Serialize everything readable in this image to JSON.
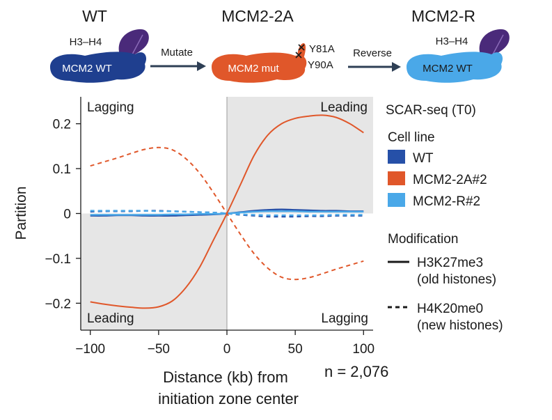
{
  "colors": {
    "wt": "#2650a8",
    "wt_dark": "#1f3f8f",
    "mutant": "#e0572a",
    "revert": "#4aa8e8",
    "histone": "#4a2a7a",
    "arrow": "#2e3f55",
    "shade": "#e6e6e6",
    "zero_line": "#9a9a9a",
    "text": "#1a1a1a"
  },
  "schematic": {
    "wt": {
      "title": "WT",
      "protein_label": "MCM2 WT",
      "histone_label": "H3–H4"
    },
    "step1": {
      "label": "Mutate"
    },
    "mutant": {
      "title": "MCM2-2A",
      "protein_label": "MCM2 mut",
      "mutation_1": "Y81A",
      "mutation_2": "Y90A"
    },
    "step2": {
      "label": "Reverse"
    },
    "revert": {
      "title": "MCM2-R",
      "protein_label": "MCM2 WT",
      "histone_label": "H3–H4"
    }
  },
  "chart_data": {
    "type": "line",
    "xlabel_line1": "Distance (kb) from",
    "xlabel_line2": "initiation zone center",
    "ylabel": "Partition",
    "xlim": [
      -107,
      107
    ],
    "ylim": [
      -0.26,
      0.26
    ],
    "x_ticks": [
      {
        "value": -100,
        "label": "−100"
      },
      {
        "value": -50,
        "label": "−50"
      },
      {
        "value": 0,
        "label": "0"
      },
      {
        "value": 50,
        "label": "50"
      },
      {
        "value": 100,
        "label": "100"
      }
    ],
    "y_ticks": [
      {
        "value": 0.2,
        "label": "0.2"
      },
      {
        "value": 0.1,
        "label": "0.1"
      },
      {
        "value": 0,
        "label": "0"
      },
      {
        "value": -0.1,
        "label": "−0.1"
      },
      {
        "value": -0.2,
        "label": "−0.2"
      }
    ],
    "quadrant_labels": {
      "top_left": "Lagging",
      "top_right": "Leading",
      "bottom_left": "Leading",
      "bottom_right": "Lagging"
    },
    "n_label": "n = 2,076",
    "legend": {
      "title": "SCAR-seq (T0)",
      "cell_line_header": "Cell line",
      "cell_lines": [
        {
          "name": "WT",
          "color": "#2650a8"
        },
        {
          "name": "MCM2-2A#2",
          "color": "#e0572a"
        },
        {
          "name": "MCM2-R#2",
          "color": "#4aa8e8"
        }
      ],
      "modification_header": "Modification",
      "modifications": [
        {
          "name": "H3K27me3",
          "note": "(old histones)",
          "dash": "solid"
        },
        {
          "name": "H4K20me0",
          "note": "(new histones)",
          "dash": "dashed"
        }
      ]
    },
    "x": [
      -100,
      -90,
      -80,
      -70,
      -60,
      -50,
      -40,
      -30,
      -20,
      -10,
      0,
      10,
      20,
      30,
      40,
      50,
      60,
      70,
      80,
      90,
      100
    ],
    "series": [
      {
        "name": "MCM2-2A#2 H3K27me3",
        "cell_line": "MCM2-2A#2",
        "modification": "H3K27me3",
        "color": "#e0572a",
        "dash": "solid",
        "values": [
          -0.197,
          -0.202,
          -0.206,
          -0.209,
          -0.211,
          -0.208,
          -0.195,
          -0.165,
          -0.12,
          -0.06,
          0.0,
          0.065,
          0.13,
          0.175,
          0.2,
          0.212,
          0.217,
          0.219,
          0.214,
          0.2,
          0.18
        ]
      },
      {
        "name": "MCM2-2A#2 H4K20me0",
        "cell_line": "MCM2-2A#2",
        "modification": "H4K20me0",
        "color": "#e0572a",
        "dash": "dashed",
        "values": [
          0.106,
          0.115,
          0.124,
          0.134,
          0.143,
          0.147,
          0.142,
          0.122,
          0.09,
          0.047,
          0.0,
          -0.047,
          -0.09,
          -0.122,
          -0.142,
          -0.147,
          -0.143,
          -0.134,
          -0.124,
          -0.115,
          -0.106
        ]
      },
      {
        "name": "WT H3K27me3",
        "cell_line": "WT",
        "modification": "H3K27me3",
        "color": "#2650a8",
        "dash": "solid",
        "values": [
          -0.005,
          -0.005,
          -0.004,
          -0.004,
          -0.005,
          -0.005,
          -0.005,
          -0.004,
          -0.003,
          -0.002,
          0.0,
          0.003,
          0.006,
          0.008,
          0.009,
          0.008,
          0.007,
          0.006,
          0.006,
          0.005,
          0.005
        ]
      },
      {
        "name": "WT H4K20me0",
        "cell_line": "WT",
        "modification": "H4K20me0",
        "color": "#2650a8",
        "dash": "dashed",
        "values": [
          0.004,
          0.005,
          0.005,
          0.005,
          0.006,
          0.006,
          0.005,
          0.004,
          0.003,
          0.002,
          0.0,
          -0.003,
          -0.005,
          -0.007,
          -0.007,
          -0.007,
          -0.006,
          -0.006,
          -0.005,
          -0.005,
          -0.005
        ]
      },
      {
        "name": "MCM2-R#2 H3K27me3",
        "cell_line": "MCM2-R#2",
        "modification": "H3K27me3",
        "color": "#4aa8e8",
        "dash": "solid",
        "values": [
          -0.003,
          -0.003,
          -0.003,
          -0.003,
          -0.003,
          -0.003,
          -0.002,
          -0.002,
          -0.001,
          -0.001,
          0.0,
          0.002,
          0.004,
          0.005,
          0.005,
          0.005,
          0.004,
          0.004,
          0.004,
          0.004,
          0.004
        ]
      },
      {
        "name": "MCM2-R#2 H4K20me0",
        "cell_line": "MCM2-R#2",
        "modification": "H4K20me0",
        "color": "#4aa8e8",
        "dash": "dashed",
        "values": [
          0.006,
          0.006,
          0.006,
          0.006,
          0.006,
          0.005,
          0.005,
          0.004,
          0.003,
          0.002,
          0.0,
          -0.002,
          -0.003,
          -0.004,
          -0.004,
          -0.004,
          -0.004,
          -0.004,
          -0.003,
          -0.003,
          -0.003
        ]
      }
    ]
  }
}
